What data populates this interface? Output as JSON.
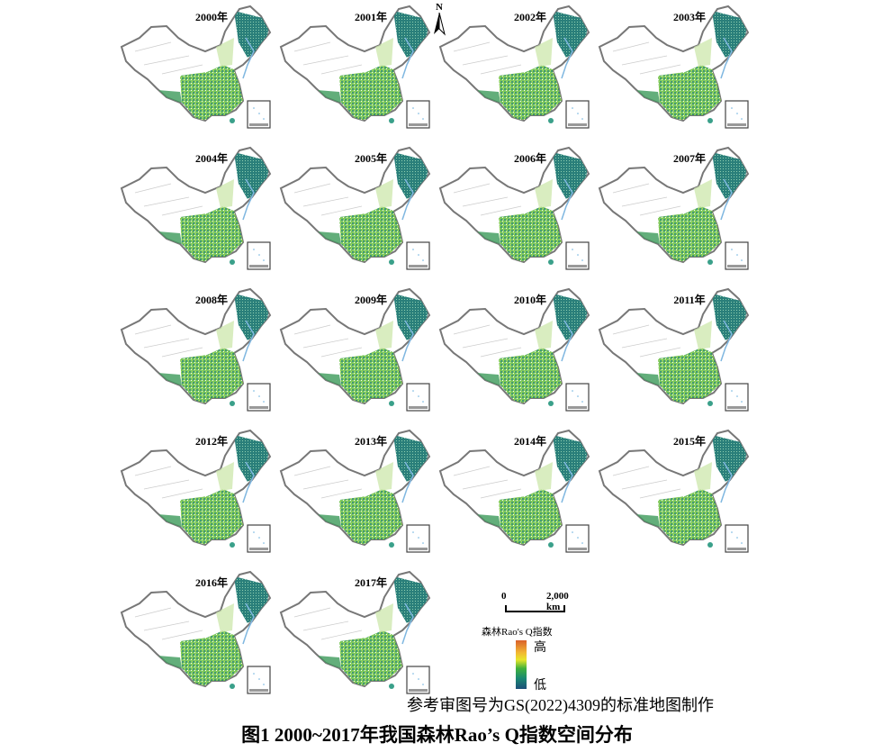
{
  "panels": [
    "2000年",
    "2001年",
    "2002年",
    "2003年",
    "2004年",
    "2005年",
    "2006年",
    "2007年",
    "2008年",
    "2009年",
    "2010年",
    "2011年",
    "2012年",
    "2013年",
    "2014年",
    "2015年",
    "2016年",
    "2017年"
  ],
  "north_label": "N",
  "scale_bar": {
    "start": "0",
    "end": "2,000 km"
  },
  "legend": {
    "title": "森林Rao's Q指数",
    "high": "高",
    "low": "低",
    "colors": [
      "#d9602b",
      "#f2b632",
      "#e8e62a",
      "#3fb13c",
      "#1a8a72",
      "#1d4f7a"
    ]
  },
  "map_note": "参考审图号为GS(2022)4309的标准地图制作",
  "caption": "图1 2000~2017年我国森林Rao’s Q指数空间分布"
}
